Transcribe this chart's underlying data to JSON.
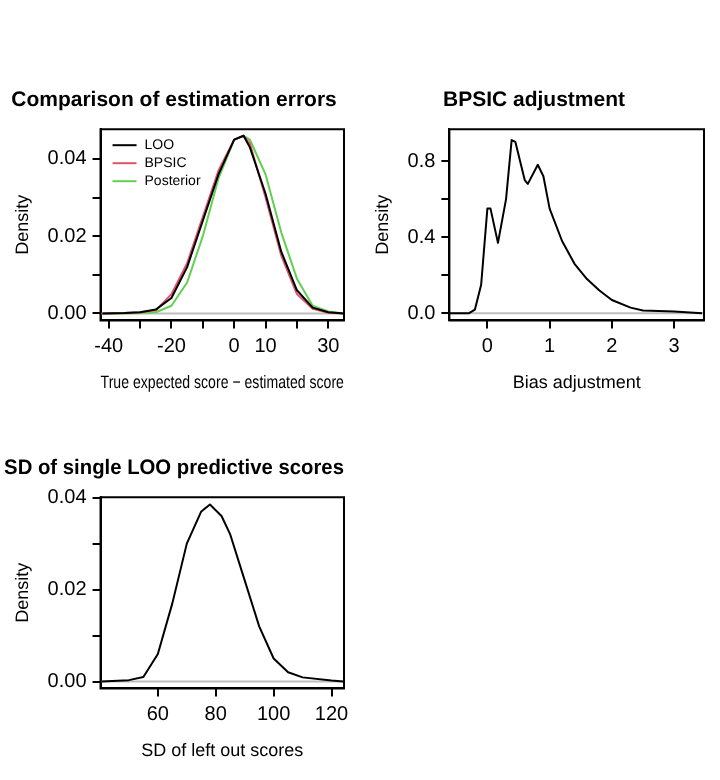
{
  "chart_data": [
    {
      "type": "line",
      "title": "Comparison of estimation errors",
      "xlabel": "True expected score − estimated score",
      "ylabel": "Density",
      "x": [
        -42,
        -35,
        -30,
        -25,
        -20,
        -15,
        -10,
        -5,
        0,
        3,
        5,
        10,
        15,
        20,
        25,
        30,
        35
      ],
      "series": [
        {
          "name": "LOO",
          "color": "#000000",
          "values": [
            0,
            0.0001,
            0.0003,
            0.001,
            0.004,
            0.012,
            0.024,
            0.036,
            0.045,
            0.046,
            0.043,
            0.031,
            0.016,
            0.006,
            0.0015,
            0.0003,
            0
          ]
        },
        {
          "name": "BPSIC",
          "color": "#df536b",
          "values": [
            0,
            0.0001,
            0.0003,
            0.0008,
            0.005,
            0.013,
            0.025,
            0.037,
            0.045,
            0.046,
            0.044,
            0.03,
            0.015,
            0.005,
            0.0012,
            0.0002,
            0
          ]
        },
        {
          "name": "Posterior",
          "color": "#61d04f",
          "values": [
            0,
            0,
            0.0001,
            0.0003,
            0.002,
            0.008,
            0.02,
            0.035,
            0.045,
            0.046,
            0.045,
            0.036,
            0.021,
            0.009,
            0.002,
            0.0005,
            0
          ]
        }
      ],
      "xlim": [
        -42.6,
        35
      ],
      "ylim": [
        -0.0018,
        0.0477
      ],
      "xticks": [
        -40,
        {
          "value": -30,
          "label": null
        },
        -20,
        {
          "value": -10,
          "label": null
        },
        0,
        10,
        {
          "value": 20,
          "label": null
        },
        30
      ],
      "yticks": [
        {
          "value": 0,
          "label": "0.00"
        },
        {
          "value": 0.01,
          "label": null
        },
        {
          "value": 0.02,
          "label": "0.02"
        },
        {
          "value": 0.03,
          "label": null
        },
        {
          "value": 0.04,
          "label": "0.04"
        }
      ],
      "ref_lines": [
        {
          "axis": "y",
          "value": 0,
          "color": "#bebebe"
        }
      ],
      "legend": "top left",
      "marker": "none",
      "line_style": "solid"
    },
    {
      "type": "line",
      "title": "BPSIC adjustment",
      "xlabel": "Bias adjustment",
      "ylabel": "Density",
      "x": [
        -0.6,
        -0.3,
        -0.2,
        -0.1,
        0,
        0.05,
        0.17,
        0.3,
        0.39,
        0.45,
        0.6,
        0.65,
        0.81,
        0.9,
        1.0,
        1.2,
        1.4,
        1.6,
        1.8,
        2.0,
        2.3,
        2.5,
        3.0,
        3.45
      ],
      "series": [
        {
          "color": "#000000",
          "values": [
            0,
            0,
            0.02,
            0.15,
            0.55,
            0.55,
            0.37,
            0.6,
            0.91,
            0.9,
            0.7,
            0.68,
            0.78,
            0.72,
            0.55,
            0.38,
            0.26,
            0.18,
            0.12,
            0.07,
            0.03,
            0.015,
            0.01,
            0
          ]
        }
      ],
      "xlim": [
        -0.61,
        3.48
      ],
      "ylim": [
        -0.037,
        0.967
      ],
      "xticks": [
        0,
        1,
        2,
        3
      ],
      "yticks": [
        {
          "value": 0,
          "label": "0.0"
        },
        {
          "value": 0.2,
          "label": null
        },
        {
          "value": 0.4,
          "label": "0.4"
        },
        {
          "value": 0.6,
          "label": null
        },
        {
          "value": 0.8,
          "label": "0.8"
        }
      ],
      "ref_lines": [
        {
          "axis": "y",
          "value": 0,
          "color": "#bebebe"
        }
      ],
      "marker": "none",
      "line_style": "solid"
    },
    {
      "type": "line",
      "title": "SD of single LOO predictive scores",
      "xlabel": "SD of left out scores",
      "ylabel": "Density",
      "x": [
        40.5,
        50,
        55,
        60,
        65,
        70,
        75,
        78,
        82,
        85,
        90,
        95,
        100,
        105,
        110,
        120,
        124
      ],
      "series": [
        {
          "color": "#000000",
          "values": [
            0,
            0.0003,
            0.001,
            0.006,
            0.017,
            0.03,
            0.037,
            0.0385,
            0.036,
            0.032,
            0.022,
            0.012,
            0.005,
            0.002,
            0.0009,
            0.0002,
            0
          ]
        }
      ],
      "xlim": [
        40.2,
        124.3
      ],
      "ylim": [
        -0.0015,
        0.0401
      ],
      "xticks": [
        60,
        80,
        100,
        120
      ],
      "yticks": [
        {
          "value": 0,
          "label": "0.00"
        },
        {
          "value": 0.01,
          "label": null
        },
        {
          "value": 0.02,
          "label": "0.02"
        },
        {
          "value": 0.03,
          "label": null
        },
        {
          "value": 0.04,
          "label": "0.04"
        }
      ],
      "ref_lines": [
        {
          "axis": "y",
          "value": 0,
          "color": "#bebebe"
        }
      ],
      "marker": "none",
      "line_style": "solid"
    }
  ]
}
